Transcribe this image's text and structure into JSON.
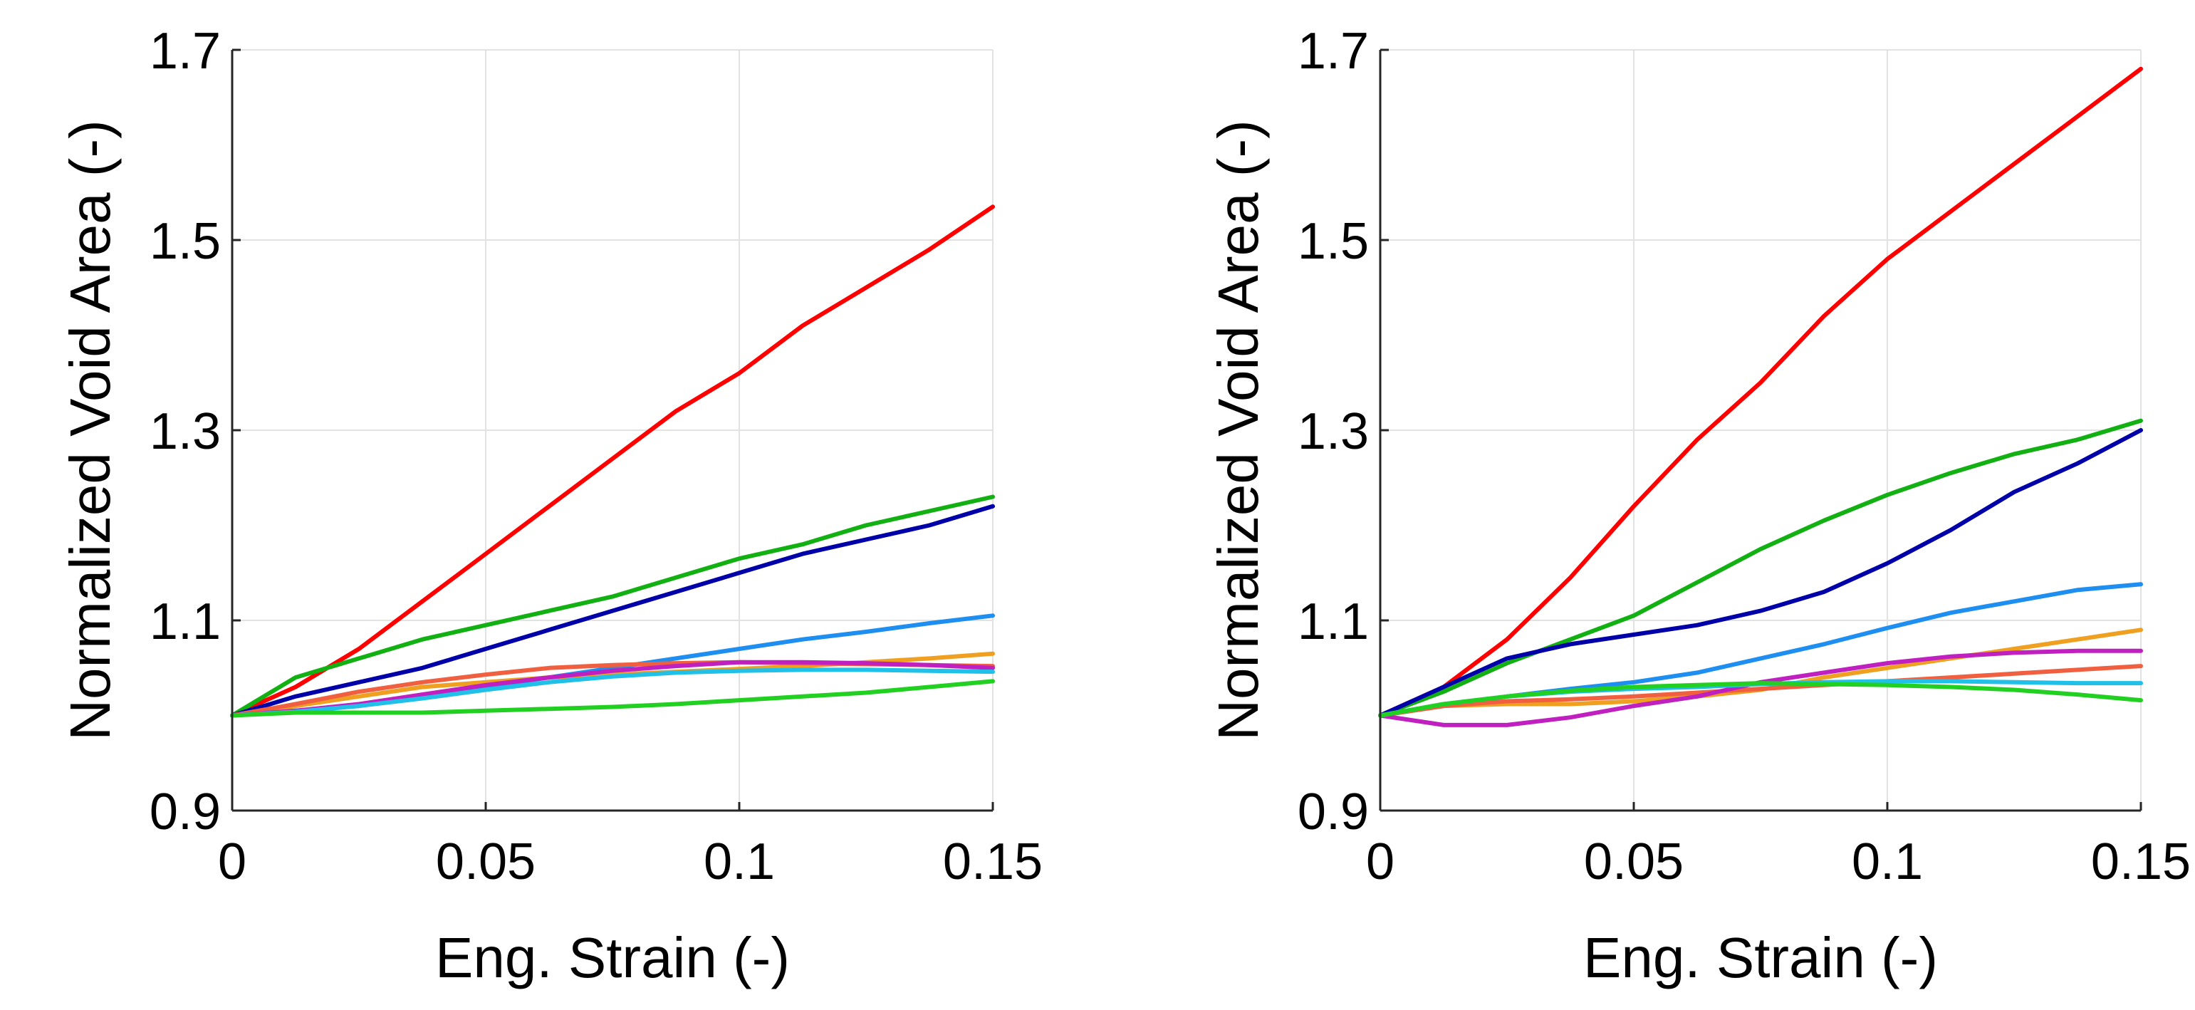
{
  "chart_data": [
    {
      "type": "line",
      "title": "",
      "xlabel": "Eng. Strain (-)",
      "ylabel": "Normalized Void Area (-)",
      "xlim": [
        0,
        0.15
      ],
      "ylim": [
        0.9,
        1.7
      ],
      "xticks": [
        0,
        0.05,
        0.1,
        0.15
      ],
      "xtick_labels": [
        "0",
        "0.05",
        "0.1",
        "0.15"
      ],
      "yticks": [
        0.9,
        1.1,
        1.3,
        1.5,
        1.7
      ],
      "ytick_labels": [
        "0.9",
        "1.1",
        "1.3",
        "1.5",
        "1.7"
      ],
      "grid": true,
      "x": [
        0,
        0.0125,
        0.025,
        0.0375,
        0.05,
        0.0625,
        0.075,
        0.0875,
        0.1,
        0.1125,
        0.125,
        0.1375,
        0.15
      ],
      "series": [
        {
          "name": "red",
          "color": "#ff0000",
          "values": [
            1.0,
            1.03,
            1.07,
            1.12,
            1.17,
            1.22,
            1.27,
            1.32,
            1.36,
            1.41,
            1.45,
            1.49,
            1.535
          ]
        },
        {
          "name": "green",
          "color": "#13b013",
          "values": [
            1.0,
            1.04,
            1.06,
            1.08,
            1.095,
            1.11,
            1.125,
            1.145,
            1.165,
            1.18,
            1.2,
            1.215,
            1.23
          ]
        },
        {
          "name": "navy",
          "color": "#0000a8",
          "values": [
            1.0,
            1.02,
            1.035,
            1.05,
            1.07,
            1.09,
            1.11,
            1.13,
            1.15,
            1.17,
            1.185,
            1.2,
            1.22
          ]
        },
        {
          "name": "blue",
          "color": "#1e8ff0",
          "values": [
            1.0,
            1.005,
            1.01,
            1.02,
            1.03,
            1.04,
            1.05,
            1.06,
            1.07,
            1.08,
            1.088,
            1.097,
            1.105
          ]
        },
        {
          "name": "orange",
          "color": "#f0a020",
          "values": [
            1.0,
            1.01,
            1.02,
            1.03,
            1.035,
            1.04,
            1.043,
            1.046,
            1.049,
            1.052,
            1.056,
            1.06,
            1.065
          ]
        },
        {
          "name": "salmon",
          "color": "#f06040",
          "values": [
            1.0,
            1.012,
            1.025,
            1.035,
            1.043,
            1.05,
            1.053,
            1.055,
            1.056,
            1.055,
            1.054,
            1.053,
            1.052
          ]
        },
        {
          "name": "magenta",
          "color": "#c020c0",
          "values": [
            1.0,
            1.005,
            1.012,
            1.022,
            1.032,
            1.04,
            1.047,
            1.052,
            1.056,
            1.056,
            1.055,
            1.053,
            1.05
          ]
        },
        {
          "name": "cyan",
          "color": "#20c0e8",
          "values": [
            1.0,
            1.004,
            1.01,
            1.018,
            1.027,
            1.035,
            1.041,
            1.045,
            1.047,
            1.048,
            1.048,
            1.047,
            1.046
          ]
        },
        {
          "name": "lime",
          "color": "#22d022",
          "values": [
            1.0,
            1.003,
            1.003,
            1.003,
            1.005,
            1.007,
            1.009,
            1.012,
            1.016,
            1.02,
            1.024,
            1.03,
            1.036
          ]
        }
      ]
    },
    {
      "type": "line",
      "title": "",
      "xlabel": "Eng. Strain (-)",
      "ylabel": "Normalized Void Area (-)",
      "xlim": [
        0,
        0.15
      ],
      "ylim": [
        0.9,
        1.7
      ],
      "xticks": [
        0,
        0.05,
        0.1,
        0.15
      ],
      "xtick_labels": [
        "0",
        "0.05",
        "0.1",
        "0.15"
      ],
      "yticks": [
        0.9,
        1.1,
        1.3,
        1.5,
        1.7
      ],
      "ytick_labels": [
        "0.9",
        "1.1",
        "1.3",
        "1.5",
        "1.7"
      ],
      "grid": true,
      "x": [
        0,
        0.0125,
        0.025,
        0.0375,
        0.05,
        0.0625,
        0.075,
        0.0875,
        0.1,
        0.1125,
        0.125,
        0.1375,
        0.15
      ],
      "series": [
        {
          "name": "red",
          "color": "#ff0000",
          "values": [
            1.0,
            1.03,
            1.08,
            1.145,
            1.22,
            1.29,
            1.35,
            1.42,
            1.48,
            1.53,
            1.58,
            1.63,
            1.68
          ]
        },
        {
          "name": "green",
          "color": "#13b013",
          "values": [
            1.0,
            1.025,
            1.055,
            1.08,
            1.105,
            1.14,
            1.175,
            1.205,
            1.232,
            1.255,
            1.275,
            1.29,
            1.31
          ]
        },
        {
          "name": "navy",
          "color": "#0000a8",
          "values": [
            1.0,
            1.03,
            1.06,
            1.075,
            1.085,
            1.095,
            1.11,
            1.13,
            1.16,
            1.195,
            1.235,
            1.265,
            1.3
          ]
        },
        {
          "name": "blue",
          "color": "#1e8ff0",
          "values": [
            1.0,
            1.01,
            1.02,
            1.028,
            1.035,
            1.045,
            1.06,
            1.075,
            1.092,
            1.108,
            1.12,
            1.132,
            1.138
          ]
        },
        {
          "name": "orange",
          "color": "#f0a020",
          "values": [
            1.0,
            1.01,
            1.012,
            1.012,
            1.015,
            1.02,
            1.027,
            1.04,
            1.05,
            1.06,
            1.07,
            1.08,
            1.09
          ]
        },
        {
          "name": "salmon",
          "color": "#f06040",
          "values": [
            1.0,
            1.01,
            1.015,
            1.017,
            1.02,
            1.024,
            1.028,
            1.032,
            1.036,
            1.04,
            1.044,
            1.048,
            1.052
          ]
        },
        {
          "name": "magenta",
          "color": "#c020c0",
          "values": [
            1.0,
            0.99,
            0.99,
            0.998,
            1.01,
            1.02,
            1.035,
            1.045,
            1.055,
            1.062,
            1.066,
            1.068,
            1.068
          ]
        },
        {
          "name": "cyan",
          "color": "#20c0e8",
          "values": [
            1.0,
            1.012,
            1.02,
            1.025,
            1.028,
            1.03,
            1.033,
            1.035,
            1.036,
            1.036,
            1.035,
            1.034,
            1.034
          ]
        },
        {
          "name": "lime",
          "color": "#22d022",
          "values": [
            1.0,
            1.012,
            1.02,
            1.026,
            1.03,
            1.032,
            1.034,
            1.033,
            1.032,
            1.03,
            1.027,
            1.022,
            1.016
          ]
        }
      ]
    }
  ]
}
